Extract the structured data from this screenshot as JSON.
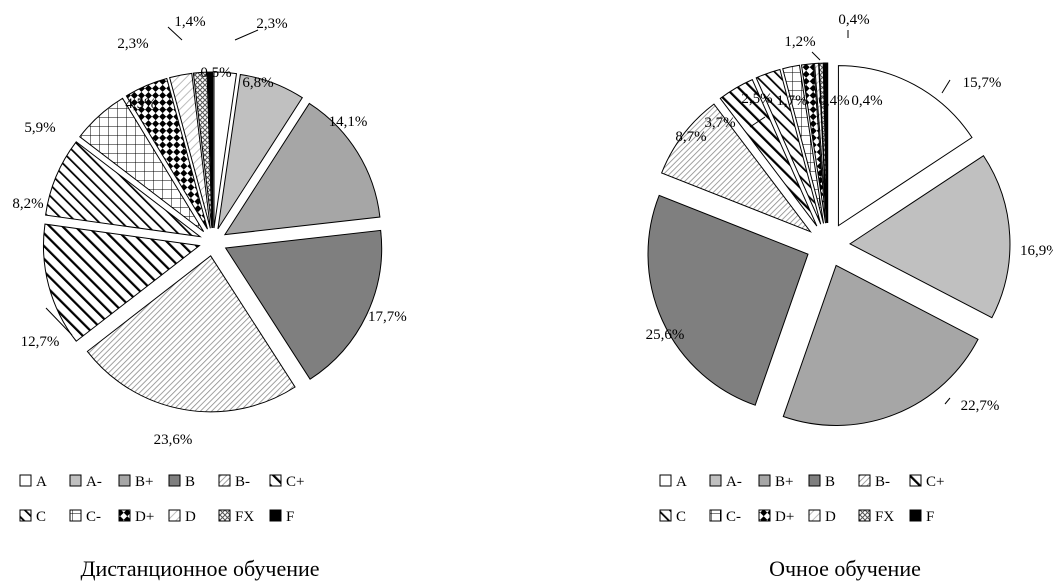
{
  "chart_data": [
    {
      "type": "pie",
      "title": "Дистанционное обучение",
      "categories": [
        "A",
        "A-",
        "B+",
        "B",
        "B-",
        "C+",
        "C",
        "C-",
        "D+",
        "D",
        "FX",
        "F"
      ],
      "values": [
        2.3,
        6.8,
        14.1,
        17.7,
        23.6,
        12.7,
        8.2,
        5.9,
        4.5,
        2.3,
        1.4,
        0.5
      ],
      "labels": [
        "2,3%",
        "6,8%",
        "14,1%",
        "17,7%",
        "23,6%",
        "12,7%",
        "8,2%",
        "5,9%",
        "4,5%",
        "2,3%",
        "1,4%",
        "0,5%"
      ],
      "legend": "bottom",
      "exploded": true
    },
    {
      "type": "pie",
      "title": "Очное обучение",
      "categories": [
        "A",
        "A-",
        "B+",
        "B",
        "B-",
        "C+",
        "C",
        "C-",
        "D+",
        "D",
        "FX",
        "F"
      ],
      "values": [
        15.7,
        16.9,
        22.7,
        25.6,
        8.7,
        3.7,
        2.5,
        1.7,
        1.2,
        0.4,
        0.4,
        0.4
      ],
      "labels": [
        "15,7%",
        "16,9%",
        "22,7%",
        "25,6%",
        "8,7%",
        "3,7%",
        "2,5%",
        "1,7%",
        "1,2%",
        "0,4%",
        "0,4%",
        "0,4%"
      ],
      "legend": "bottom",
      "exploded": true
    }
  ],
  "patterns": [
    "white",
    "lightgray",
    "gray",
    "darkgray",
    "fine-hatch",
    "diag-black",
    "diag-black-thin",
    "grid",
    "checker",
    "light-diag",
    "cross-diag",
    "black"
  ]
}
